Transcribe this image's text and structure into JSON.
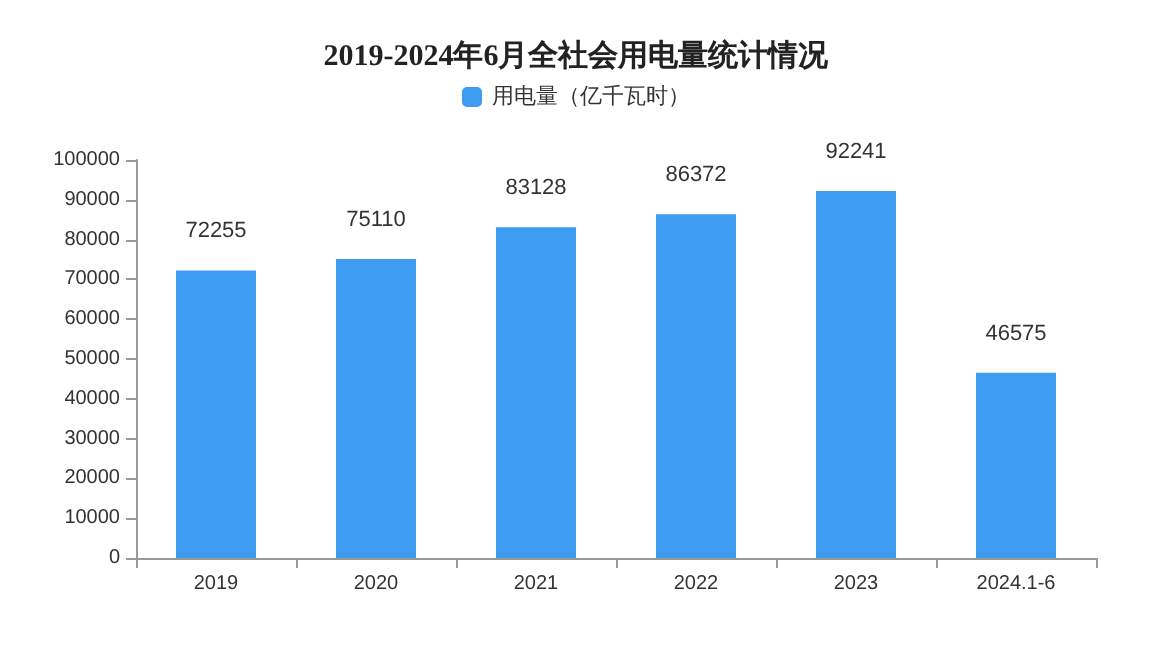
{
  "chart_data": {
    "type": "bar",
    "title": "2019-2024年6月全社会用电量统计情况",
    "categories": [
      "2019",
      "2020",
      "2021",
      "2022",
      "2023",
      "2024.1-6"
    ],
    "series": [
      {
        "name": "用电量（亿千瓦时）",
        "color": "#3d9bf0",
        "values": [
          72255,
          75110,
          83128,
          86372,
          92241,
          46575
        ]
      }
    ],
    "ylim": [
      0,
      100000
    ],
    "yticks": [
      0,
      10000,
      20000,
      30000,
      40000,
      50000,
      60000,
      70000,
      80000,
      90000,
      100000
    ],
    "grid": false,
    "legend": "top",
    "data_labels": true
  }
}
